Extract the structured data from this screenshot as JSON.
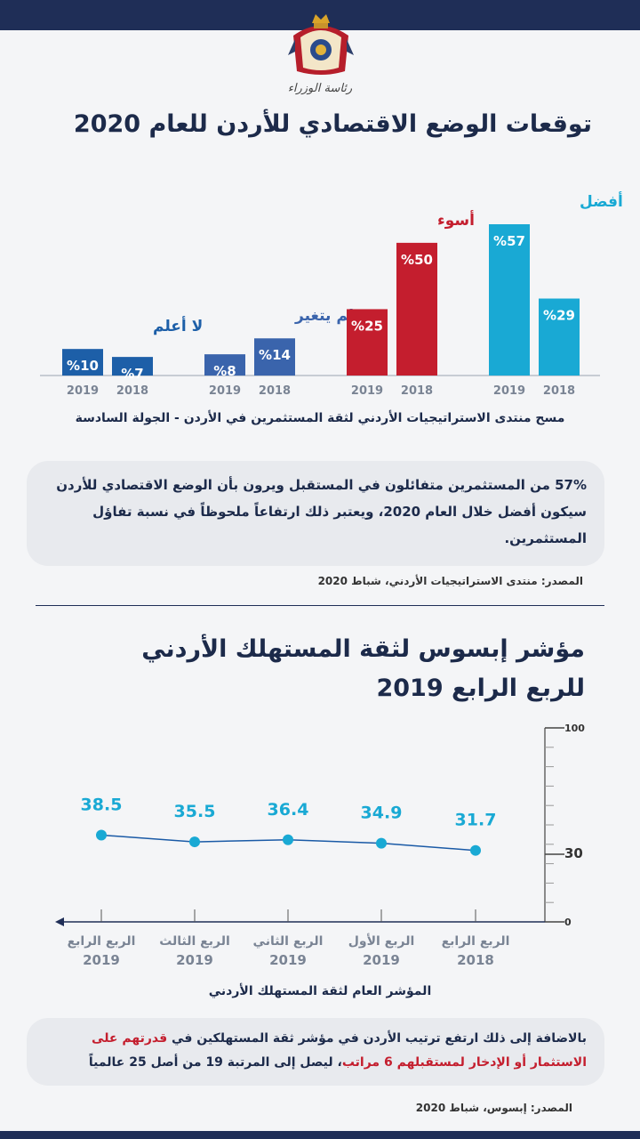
{
  "header": {
    "ministry_text": "رئاسة الوزراء"
  },
  "section1": {
    "title": "توقعات الوضع الاقتصادي للأردن للعام 2020",
    "subtitle": "مسح منتدى الاستراتيجيات الأردني لثقة المستثمرين في الأردن - الجولة السادسة",
    "card_text": "57% من المستثمرين متفائلون في المستقبل ويرون بأن الوضع الاقتصادي للأردن  سيكون أفضل خلال العام 2020، ويعتبر ذلك ارتفاعاً ملحوظاً في نسبة تفاؤل  المستثمرين.",
    "source": "المصدر: منتدى الاستراتيجيات الأردني، شباط 2020"
  },
  "section2": {
    "title_line1": "مؤشر إبسوس لثقة المستهلك الأردني",
    "title_line2": "للربع الرابع 2019",
    "caption": "المؤشر العام لثقة المستهلك الأردني",
    "card_plain_1": "بالاضافة إلى ذلك ارتفع ترتيب الأردن في مؤشر ثقة المستهلكين في ",
    "card_red": "قدرتهم على الاستثمار أو الإدخار لمستقبلهم 6 مراتب",
    "card_plain_2": "، ليصل إلى المرتبة 19 من أصل 25 عالمياً",
    "source": "المصدر:  إبسوس، شباط 2020"
  },
  "chart_data": [
    {
      "type": "bar",
      "title": "توقعات الوضع الاقتصادي للأردن للعام 2020",
      "groups": [
        {
          "label": "لا أعلم",
          "color": "#1d5fa8",
          "items": [
            {
              "year": "2019",
              "value": 10,
              "label": "%10"
            },
            {
              "year": "2018",
              "value": 7,
              "label": "%7"
            }
          ]
        },
        {
          "label": "لم يتغير",
          "color": "#3a64ac",
          "items": [
            {
              "year": "2019",
              "value": 8,
              "label": "%8"
            },
            {
              "year": "2018",
              "value": 14,
              "label": "%14"
            }
          ]
        },
        {
          "label": "أسوء",
          "color": "#c41e2e",
          "items": [
            {
              "year": "2019",
              "value": 25,
              "label": "%25"
            },
            {
              "year": "2018",
              "value": 50,
              "label": "%50"
            }
          ]
        },
        {
          "label": "أفضل",
          "color": "#19a9d4",
          "items": [
            {
              "year": "2019",
              "value": 57,
              "label": "%57"
            },
            {
              "year": "2018",
              "value": 29,
              "label": "%29"
            }
          ]
        }
      ],
      "ylim": [
        0,
        60
      ]
    },
    {
      "type": "line",
      "title": "مؤشر إبسوس لثقة المستهلك الأردني للربع الرابع 2019",
      "xlabel": "المؤشر العام لثقة المستهلك الأردني",
      "points": [
        {
          "quarter": "الربع الرابع",
          "year": "2019",
          "value": 38.5,
          "label": "38.5"
        },
        {
          "quarter": "الربع الثالث",
          "year": "2019",
          "value": 35.5,
          "label": "35.5"
        },
        {
          "quarter": "الربع الثاني",
          "year": "2019",
          "value": 36.4,
          "label": "36.4"
        },
        {
          "quarter": "الربع الأول",
          "year": "2019",
          "value": 34.9,
          "label": "34.9"
        },
        {
          "quarter": "الربع الرابع",
          "year": "2018",
          "value": 31.7,
          "label": "31.7"
        }
      ],
      "y_ticks": [
        {
          "value": 0,
          "label": "0"
        },
        {
          "value": 30,
          "label": "30"
        },
        {
          "value": 100,
          "label": "100"
        }
      ],
      "ylim": [
        0,
        100
      ],
      "line_color": "#1a5aa6",
      "point_color": "#19a9d4"
    }
  ]
}
